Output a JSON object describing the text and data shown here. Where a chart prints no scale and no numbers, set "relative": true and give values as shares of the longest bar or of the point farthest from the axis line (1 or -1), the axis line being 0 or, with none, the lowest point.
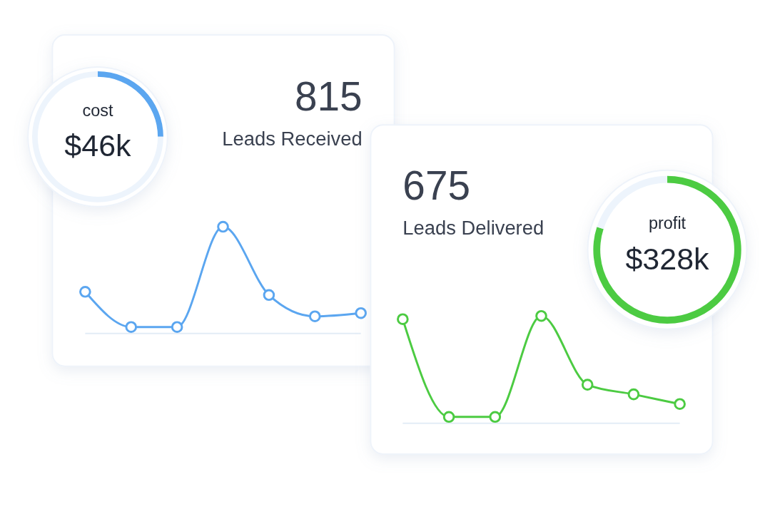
{
  "chart_data": [
    {
      "type": "line",
      "title": "815",
      "subtitle": "Leads Received",
      "categories": [
        null,
        null,
        null,
        null,
        null,
        null,
        null
      ],
      "relative": true,
      "marker": "circle",
      "color": "#5ba6f0",
      "values": [
        0.39,
        0.06,
        0.06,
        1,
        0.36,
        0.16,
        0.19
      ]
    },
    {
      "type": "donut",
      "title": "cost",
      "annotations": [
        "$46k"
      ],
      "categories": [
        null,
        null
      ],
      "values": [
        25,
        75
      ],
      "colors": [
        "#5ba6f0",
        "#edf4fc"
      ]
    },
    {
      "type": "line",
      "title": "675",
      "subtitle": "Leads Delivered",
      "categories": [
        null,
        null,
        null,
        null,
        null,
        null,
        null
      ],
      "relative": true,
      "marker": "circle",
      "color": "#4ccb42",
      "values": [
        0.97,
        0.06,
        0.06,
        1,
        0.36,
        0.27,
        0.18
      ]
    },
    {
      "type": "donut",
      "title": "profit",
      "annotations": [
        "$328k"
      ],
      "categories": [
        null,
        null
      ],
      "values": [
        80,
        20
      ],
      "colors": [
        "#4ccb42",
        "#edf4fc"
      ]
    }
  ]
}
